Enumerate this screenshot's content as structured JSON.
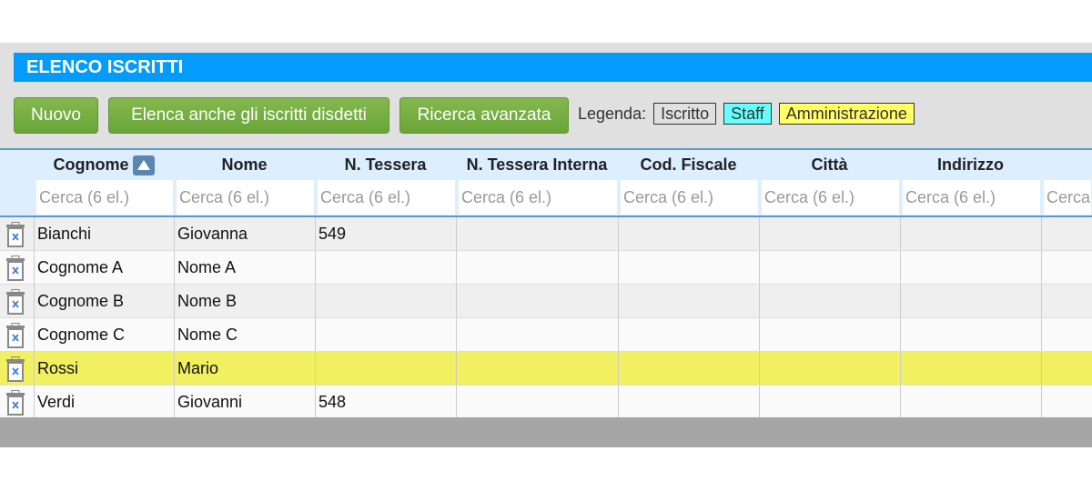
{
  "title": "ELENCO ISCRITTI",
  "buttons": {
    "new": "Nuovo",
    "list_cancelled": "Elenca anche gli iscritti disdetti",
    "advanced_search": "Ricerca avanzata"
  },
  "legend": {
    "label": "Legenda:",
    "items": [
      {
        "label": "Iscritto",
        "color": "#e0e0e0"
      },
      {
        "label": "Staff",
        "color": "#66ffff"
      },
      {
        "label": "Amministrazione",
        "color": "#ffff66"
      }
    ]
  },
  "columns": [
    "Cognome",
    "Nome",
    "N. Tessera",
    "N. Tessera Interna",
    "Cod. Fiscale",
    "Città",
    "Indirizzo",
    ""
  ],
  "sort": {
    "column": "Cognome",
    "direction": "ascending"
  },
  "search_placeholder": "Cerca (6 el.)",
  "rows": [
    {
      "cognome": "Bianchi",
      "nome": "Giovanna",
      "tessera": "549",
      "type": "Iscritto"
    },
    {
      "cognome": "Cognome A",
      "nome": "Nome A",
      "tessera": "",
      "type": "Iscritto"
    },
    {
      "cognome": "Cognome B",
      "nome": "Nome B",
      "tessera": "",
      "type": "Iscritto"
    },
    {
      "cognome": "Cognome C",
      "nome": "Nome C",
      "tessera": "",
      "type": "Iscritto"
    },
    {
      "cognome": "Rossi",
      "nome": "Mario",
      "tessera": "",
      "type": "Amministrazione"
    },
    {
      "cognome": "Verdi",
      "nome": "Giovanni",
      "tessera": "548",
      "type": "Iscritto"
    }
  ],
  "colors": {
    "title_bar": "#039bfd",
    "button": "#72ab40",
    "admin_row": "#f0f060",
    "header_bg": "#dceeff"
  }
}
